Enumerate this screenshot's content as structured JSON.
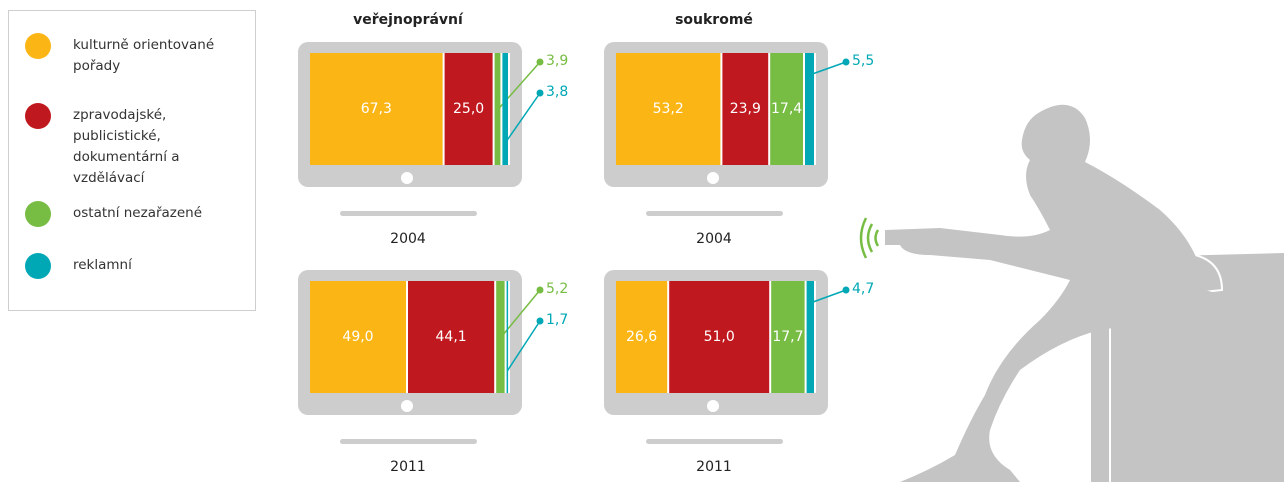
{
  "legend": {
    "items": [
      {
        "name": "kulturně orientované pořady",
        "color": "#fbb616"
      },
      {
        "name": "zpravodajské, publicistické, dokumentární a vzdělávací",
        "color": "#c0181f"
      },
      {
        "name": "ostatní nezařazené",
        "color": "#77bc43"
      },
      {
        "name": "reklamní",
        "color": "#00a8b5"
      }
    ]
  },
  "chart_data": [
    {
      "type": "stacked-bar",
      "title": "veřejnoprávní",
      "label": "2004",
      "xlim": [
        0,
        100
      ],
      "values": [
        67.3,
        25.0,
        3.9,
        3.8
      ],
      "value_labels": [
        "67,3",
        "25,0",
        "3,9",
        "3,8"
      ]
    },
    {
      "type": "stacked-bar",
      "title": "soukromé",
      "label": "2004",
      "xlim": [
        0,
        100
      ],
      "values": [
        53.2,
        23.9,
        17.4,
        5.5
      ],
      "value_labels": [
        "53,2",
        "23,9",
        "17,4",
        "5,5"
      ]
    },
    {
      "type": "stacked-bar",
      "label": "2011",
      "xlim": [
        0,
        100
      ],
      "values": [
        49.0,
        44.1,
        5.2,
        1.7
      ],
      "value_labels": [
        "49,0",
        "44,1",
        "5,2",
        "1,7"
      ]
    },
    {
      "type": "stacked-bar",
      "label": "2011",
      "xlim": [
        0,
        100
      ],
      "values": [
        26.6,
        51.0,
        17.7,
        4.7
      ],
      "value_labels": [
        "26,6",
        "51,0",
        "17,7",
        "4,7"
      ]
    }
  ]
}
